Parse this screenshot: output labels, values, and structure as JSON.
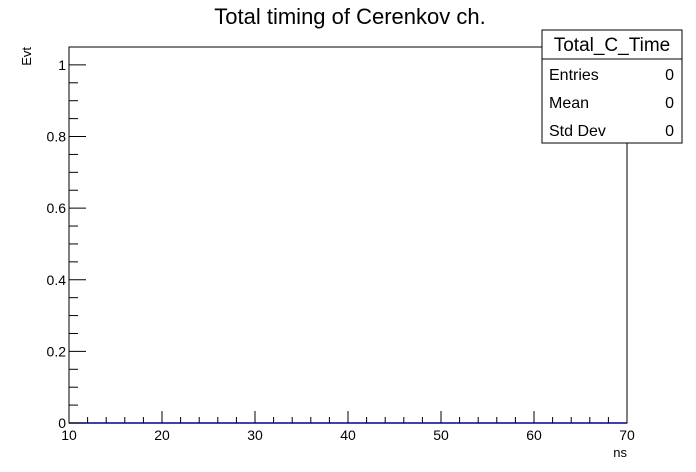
{
  "chart_data": {
    "type": "histogram",
    "title": "Total timing of Cerenkov ch.",
    "xlabel": "ns",
    "ylabel": "Evt",
    "xlim": [
      10,
      70
    ],
    "ylim": [
      0,
      1.05
    ],
    "x_ticks": [
      {
        "value": 10,
        "label": "10"
      },
      {
        "value": 20,
        "label": "20"
      },
      {
        "value": 30,
        "label": "30"
      },
      {
        "value": 40,
        "label": "40"
      },
      {
        "value": 50,
        "label": "50"
      },
      {
        "value": 60,
        "label": "60"
      },
      {
        "value": 70,
        "label": "70"
      }
    ],
    "y_ticks": [
      {
        "value": 0,
        "label": "0"
      },
      {
        "value": 0.2,
        "label": "0.2"
      },
      {
        "value": 0.4,
        "label": "0.4"
      },
      {
        "value": 0.6,
        "label": "0.6"
      },
      {
        "value": 0.8,
        "label": "0.8"
      },
      {
        "value": 1,
        "label": "1"
      }
    ],
    "series": [
      {
        "values": [],
        "color": "#000099"
      }
    ],
    "grid": false,
    "legend_position": "top-right",
    "stats_box": {
      "name": "Total_C_Time",
      "rows": [
        {
          "label": "Entries",
          "value": "0"
        },
        {
          "label": "Mean",
          "value": "0"
        },
        {
          "label": "Std Dev",
          "value": "0"
        }
      ]
    }
  }
}
